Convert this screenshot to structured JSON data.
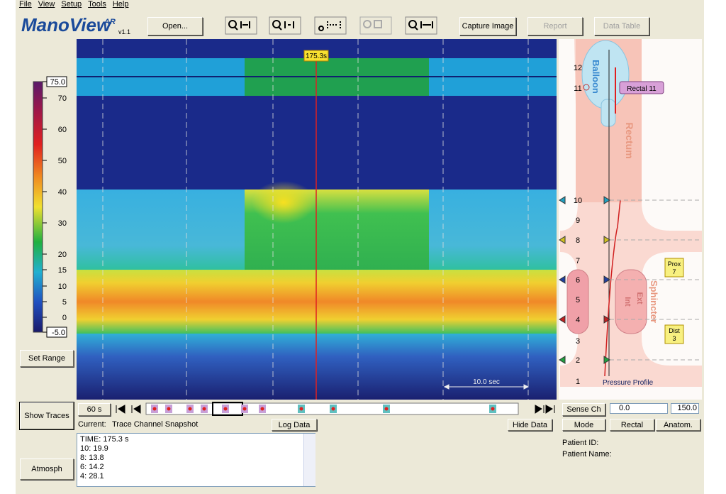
{
  "menu": [
    "File",
    "View",
    "Setup",
    "Tools",
    "Help"
  ],
  "logo": {
    "name": "ManoView",
    "suffix": "AR",
    "version": "v1.1"
  },
  "toolbar": {
    "open": "Open...",
    "capture": "Capture Image",
    "report": "Report",
    "data_table": "Data Table"
  },
  "color_scale": [
    "75.0",
    "70",
    "60",
    "50",
    "40",
    "30",
    "20",
    "15",
    "10",
    "5",
    "0",
    "-5.0"
  ],
  "set_range": "Set Range",
  "cursor_time": "175.3s",
  "scale_bar": "10.0 sec",
  "anatomy": {
    "sensors": [
      "12",
      "11",
      "10",
      "9",
      "8",
      "7",
      "6",
      "5",
      "4",
      "3",
      "2",
      "1"
    ],
    "balloon": "Balloon",
    "rectum": "Rectum",
    "rectal_label": "Rectal 11",
    "prox": [
      "Prox",
      "7"
    ],
    "dist": [
      "Dist",
      "3"
    ],
    "sphincter": "Sphincter",
    "ext": "Ext",
    "int": "Int",
    "profile": "Pressure Profile"
  },
  "controls": {
    "show_traces": "Show Traces",
    "window": "60 s",
    "current_label": "Current:",
    "current_value": "Trace Channel Snapshot",
    "log_data": "Log Data",
    "hide_data": "Hide Data",
    "atmosph": "Atmosph"
  },
  "data_lines": [
    "TIME: 175.3 s",
    "10: 19.9",
    "8: 13.8",
    "6: 14.2",
    "4: 28.1"
  ],
  "right_controls": {
    "sense_ch": "Sense Ch",
    "min": "0.0",
    "max": "150.0",
    "mode": "Mode",
    "rectal": "Rectal",
    "anatom": "Anatom."
  },
  "patient": {
    "id": "Patient ID:",
    "name": "Patient Name:"
  }
}
